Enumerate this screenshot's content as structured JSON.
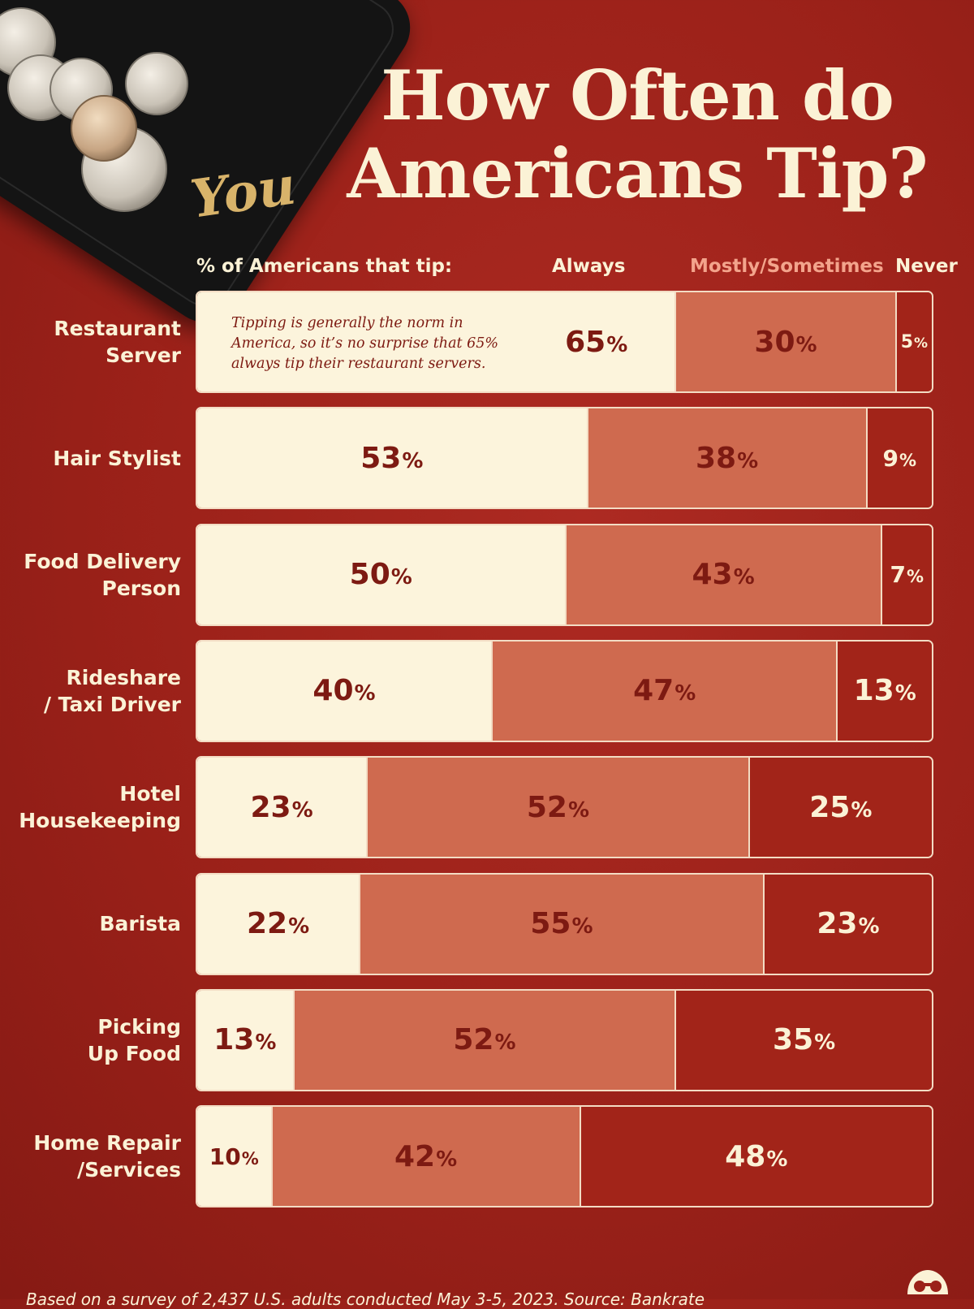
{
  "title_line1": "How Often do",
  "title_line2": "Americans Tip?",
  "tray_script": "You",
  "legend": {
    "caption": "% of Americans that tip:",
    "always": "Always",
    "mostly": "Mostly/Sometimes",
    "never": "Never"
  },
  "colors": {
    "always": "#fcf4dc",
    "mostly": "#cf6a4f",
    "never": "#a22419",
    "background": "#9b2119"
  },
  "annotation": "Tipping is generally the norm in America, so it’s no surprise that 65% always tip their restaurant servers.",
  "chart_data": {
    "type": "bar",
    "orientation": "horizontal",
    "stacked": true,
    "categories": [
      [
        "Restaurant",
        "Server"
      ],
      [
        "Hair Stylist"
      ],
      [
        "Food Delivery",
        "Person"
      ],
      [
        "Rideshare",
        "/ Taxi Driver"
      ],
      [
        "Hotel",
        "Housekeeping"
      ],
      [
        "Barista"
      ],
      [
        "Picking",
        "Up Food"
      ],
      [
        "Home Repair",
        "/Services"
      ]
    ],
    "series": [
      {
        "name": "Always",
        "values": [
          65,
          53,
          50,
          40,
          23,
          22,
          13,
          10
        ]
      },
      {
        "name": "Mostly/Sometimes",
        "values": [
          30,
          38,
          43,
          47,
          52,
          55,
          52,
          42
        ]
      },
      {
        "name": "Never",
        "values": [
          5,
          9,
          7,
          13,
          25,
          23,
          35,
          48
        ]
      }
    ],
    "xlim": [
      0,
      100
    ],
    "value_suffix": "%"
  },
  "source": "Based on a survey of 2,437 U.S. adults conducted May 3-5, 2023. Source: Bankrate"
}
